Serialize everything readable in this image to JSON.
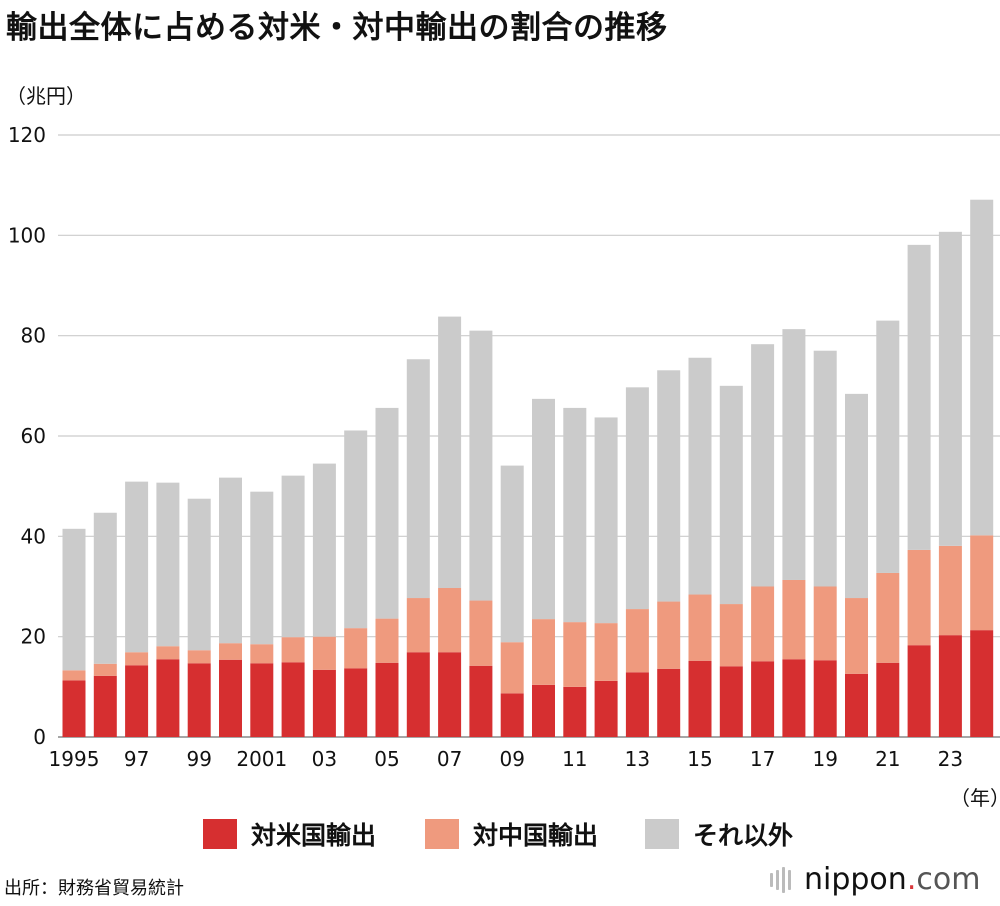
{
  "title": "輸出全体に占める対米・対中輸出の割合の推移",
  "unit_label": "（兆円）",
  "x_unit_label": "（年）",
  "source": "出所：財務省貿易統計",
  "brand": {
    "name": "nippon",
    "dot": ".",
    "tld": "com"
  },
  "colors": {
    "us": "#d62f30",
    "china": "#ef9a7e",
    "other": "#cbcbcb",
    "grid": "#cccccc"
  },
  "chart_data": {
    "type": "bar",
    "stacked": true,
    "ylim": [
      0,
      120
    ],
    "yticks": [
      0,
      20,
      40,
      60,
      80,
      100,
      120
    ],
    "grid": true,
    "legend_position": "bottom",
    "categories": [
      "1995",
      "1996",
      "1997",
      "1998",
      "1999",
      "2000",
      "2001",
      "2002",
      "2003",
      "2004",
      "2005",
      "2006",
      "2007",
      "2008",
      "2009",
      "2010",
      "2011",
      "2012",
      "2013",
      "2014",
      "2015",
      "2016",
      "2017",
      "2018",
      "2019",
      "2020",
      "2021",
      "2022",
      "2023",
      "2024"
    ],
    "xtick_labels": [
      "1995",
      "",
      "97",
      "",
      "99",
      "",
      "2001",
      "",
      "03",
      "",
      "05",
      "",
      "07",
      "",
      "09",
      "",
      "11",
      "",
      "13",
      "",
      "15",
      "",
      "17",
      "",
      "19",
      "",
      "21",
      "",
      "23",
      ""
    ],
    "series": [
      {
        "name": "対米国輸出",
        "color_key": "us",
        "values": [
          11.3,
          12.2,
          14.3,
          15.5,
          14.7,
          15.4,
          14.7,
          14.9,
          13.4,
          13.7,
          14.8,
          16.9,
          16.9,
          14.2,
          8.7,
          10.4,
          10.0,
          11.2,
          12.9,
          13.6,
          15.2,
          14.1,
          15.1,
          15.5,
          15.3,
          12.6,
          14.8,
          18.3,
          20.3,
          21.3
        ]
      },
      {
        "name": "対中国輸出",
        "color_key": "china",
        "values": [
          2.0,
          2.4,
          2.6,
          2.6,
          2.6,
          3.3,
          3.8,
          5.0,
          6.6,
          8.0,
          8.8,
          10.8,
          12.8,
          13.0,
          10.2,
          13.1,
          12.9,
          11.5,
          12.6,
          13.4,
          13.2,
          12.4,
          14.9,
          15.8,
          14.7,
          15.1,
          17.9,
          19.0,
          17.8,
          18.9
        ]
      },
      {
        "name": "それ以外",
        "color_key": "other",
        "values": [
          28.2,
          30.1,
          34.0,
          32.6,
          30.2,
          33.0,
          30.4,
          32.2,
          34.5,
          39.4,
          42.0,
          47.6,
          54.1,
          53.8,
          35.2,
          43.9,
          42.7,
          41.0,
          44.2,
          46.1,
          47.2,
          43.5,
          48.3,
          50.0,
          47.0,
          40.7,
          50.3,
          60.8,
          62.6,
          66.9
        ]
      }
    ]
  }
}
